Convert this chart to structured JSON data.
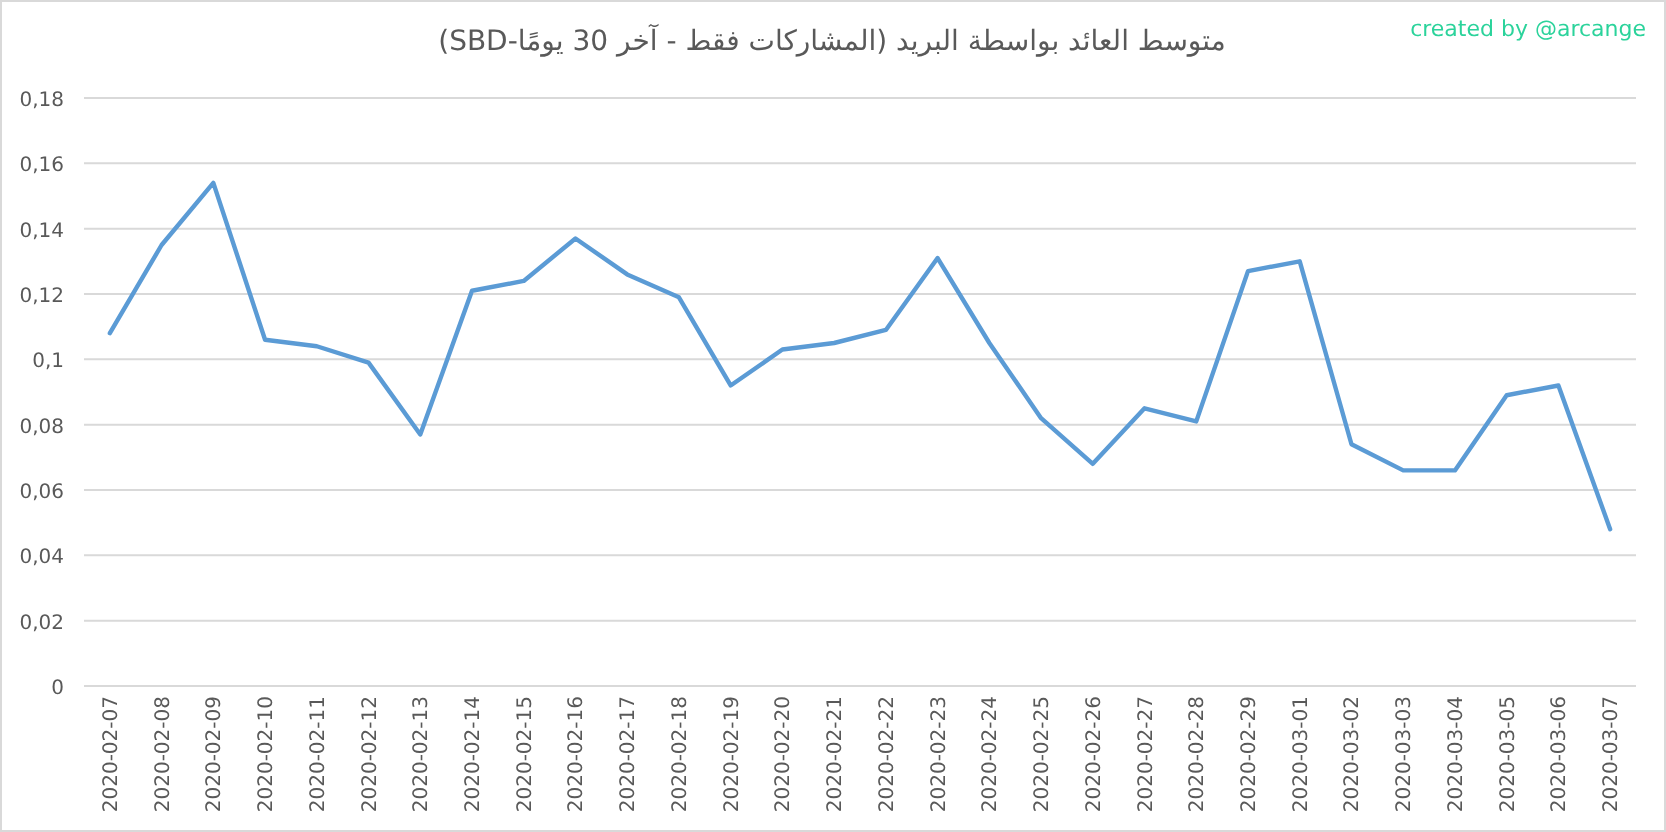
{
  "chart_data": {
    "type": "line",
    "title": "متوسط العائد بواسطة البريد (المشاركات فقط - آخر 30 يومًا-SBD)",
    "annotations": [
      "created by @arcange"
    ],
    "categories": [
      "2020-02-07",
      "2020-02-08",
      "2020-02-09",
      "2020-02-10",
      "2020-02-11",
      "2020-02-12",
      "2020-02-13",
      "2020-02-14",
      "2020-02-15",
      "2020-02-16",
      "2020-02-17",
      "2020-02-18",
      "2020-02-19",
      "2020-02-20",
      "2020-02-21",
      "2020-02-22",
      "2020-02-23",
      "2020-02-24",
      "2020-02-25",
      "2020-02-26",
      "2020-02-27",
      "2020-02-28",
      "2020-02-29",
      "2020-03-01",
      "2020-03-02",
      "2020-03-03",
      "2020-03-04",
      "2020-03-05",
      "2020-03-06",
      "2020-03-07"
    ],
    "series": [
      {
        "color": "#5b9bd5",
        "values": [
          0.108,
          0.135,
          0.154,
          0.106,
          0.104,
          0.099,
          0.077,
          0.121,
          0.124,
          0.137,
          0.126,
          0.119,
          0.092,
          0.103,
          0.105,
          0.109,
          0.131,
          0.105,
          0.082,
          0.068,
          0.085,
          0.081,
          0.127,
          0.13,
          0.074,
          0.066,
          0.066,
          0.089,
          0.092,
          0.048
        ]
      }
    ],
    "ylim": [
      0,
      0.18
    ],
    "yticks": [
      0,
      {
        "value": 0.02,
        "label": "0,02"
      },
      {
        "value": 0.04,
        "label": "0,04"
      },
      {
        "value": 0.06,
        "label": "0,06"
      },
      {
        "value": 0.08,
        "label": "0,08"
      },
      {
        "value": 0.1,
        "label": "0,1"
      },
      {
        "value": 0.12,
        "label": "0,12"
      },
      {
        "value": 0.14,
        "label": "0,14"
      },
      {
        "value": 0.16,
        "label": "0,16"
      },
      {
        "value": 0.18,
        "label": "0,18"
      }
    ],
    "grid": "y",
    "marker": "none",
    "line_style": "solid"
  }
}
